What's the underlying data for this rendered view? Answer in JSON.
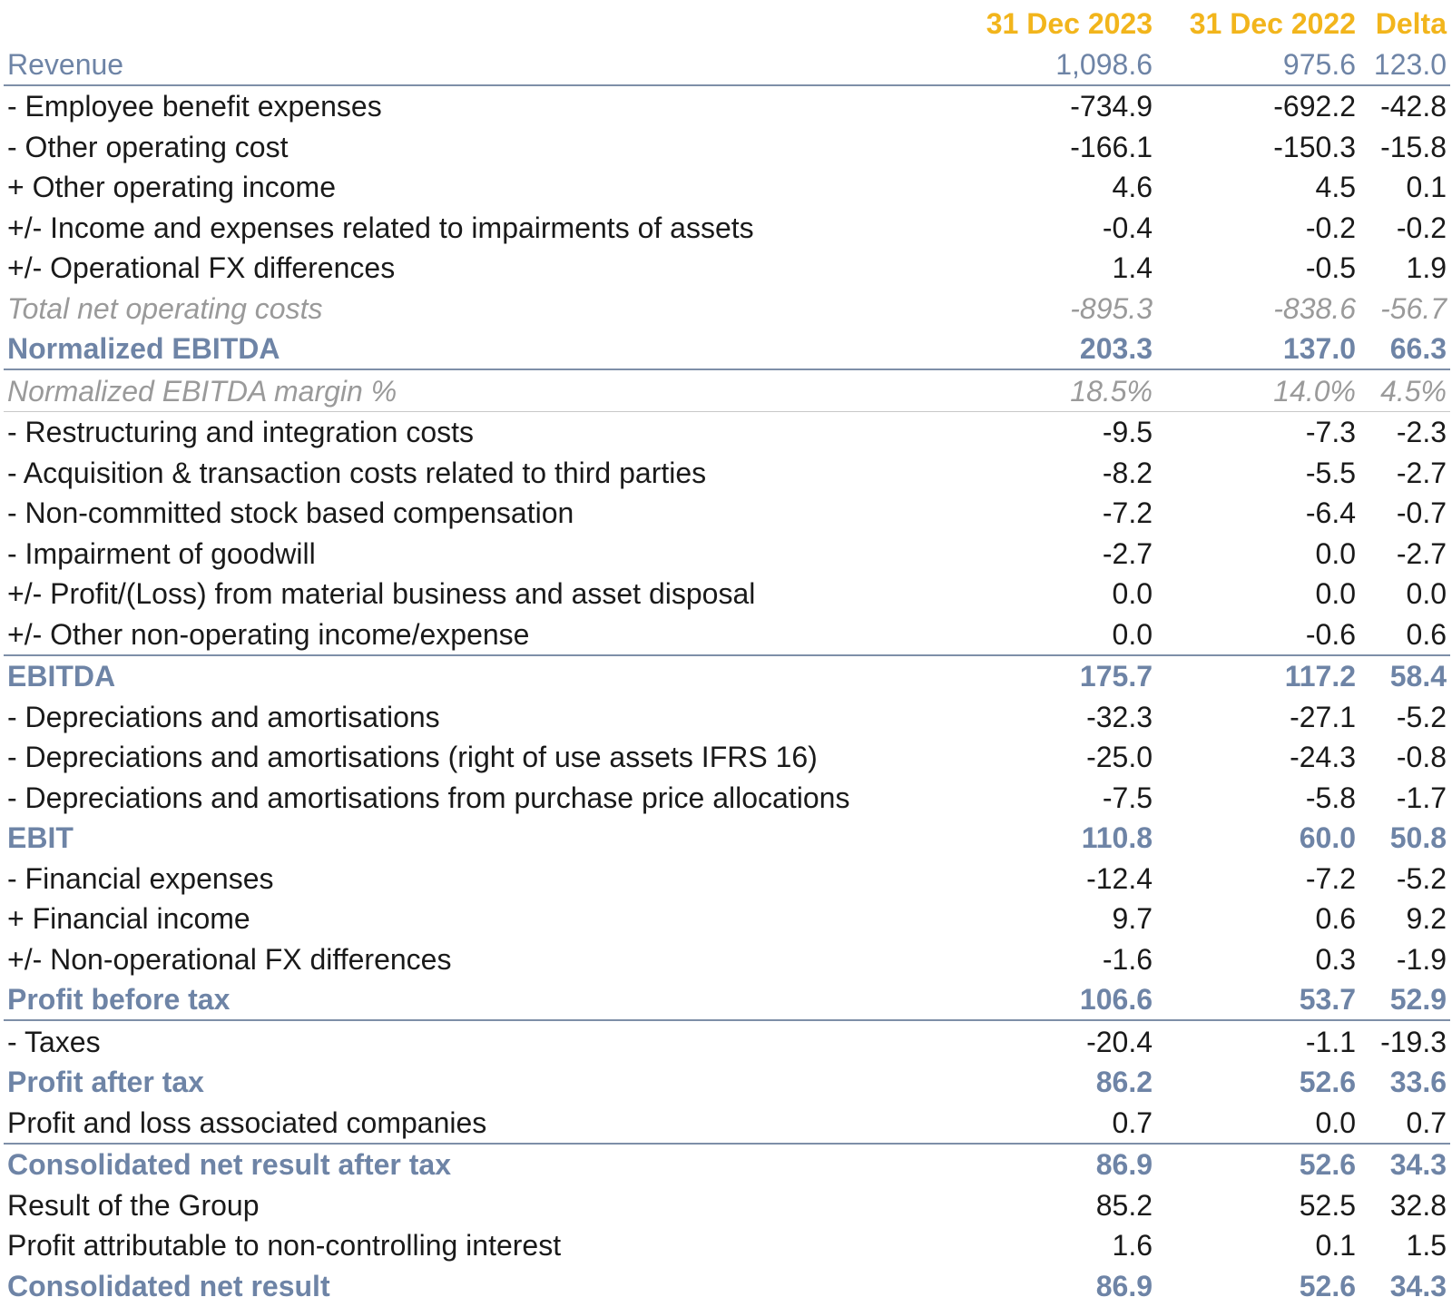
{
  "columns": {
    "label": "",
    "c2023": "31 Dec 2023",
    "c2022": "31 Dec 2022",
    "delta": "Delta"
  },
  "rows": [
    {
      "label": "Revenue",
      "c2023": "1,098.6",
      "c2022": "975.6",
      "delta": "123.0"
    },
    {
      "label": "- Employee benefit expenses",
      "c2023": "-734.9",
      "c2022": "-692.2",
      "delta": "-42.8"
    },
    {
      "label": "- Other operating cost",
      "c2023": "-166.1",
      "c2022": "-150.3",
      "delta": "-15.8"
    },
    {
      "label": "+ Other operating income",
      "c2023": "4.6",
      "c2022": "4.5",
      "delta": "0.1"
    },
    {
      "label": "+/- Income and expenses related to impairments of assets",
      "c2023": "-0.4",
      "c2022": "-0.2",
      "delta": "-0.2"
    },
    {
      "label": "+/- Operational FX differences",
      "c2023": "1.4",
      "c2022": "-0.5",
      "delta": "1.9"
    },
    {
      "label": "Total net operating costs",
      "c2023": "-895.3",
      "c2022": "-838.6",
      "delta": "-56.7"
    },
    {
      "label": "Normalized EBITDA",
      "c2023": "203.3",
      "c2022": "137.0",
      "delta": "66.3"
    },
    {
      "label": "Normalized EBITDA margin %",
      "c2023": "18.5%",
      "c2022": "14.0%",
      "delta": "4.5%"
    },
    {
      "label": "- Restructuring and integration costs",
      "c2023": "-9.5",
      "c2022": "-7.3",
      "delta": "-2.3"
    },
    {
      "label": "- Acquisition & transaction costs related to third parties",
      "c2023": "-8.2",
      "c2022": "-5.5",
      "delta": "-2.7"
    },
    {
      "label": "- Non-committed stock based compensation",
      "c2023": "-7.2",
      "c2022": "-6.4",
      "delta": "-0.7"
    },
    {
      "label": "- Impairment of goodwill",
      "c2023": "-2.7",
      "c2022": "0.0",
      "delta": "-2.7"
    },
    {
      "label": "+/- Profit/(Loss) from material business and asset disposal",
      "c2023": "0.0",
      "c2022": "0.0",
      "delta": "0.0"
    },
    {
      "label": "+/- Other non-operating income/expense",
      "c2023": "0.0",
      "c2022": "-0.6",
      "delta": "0.6"
    },
    {
      "label": "EBITDA",
      "c2023": "175.7",
      "c2022": "117.2",
      "delta": "58.4"
    },
    {
      "label": "- Depreciations and amortisations",
      "c2023": "-32.3",
      "c2022": "-27.1",
      "delta": "-5.2"
    },
    {
      "label": "- Depreciations and amortisations (right of use assets IFRS 16)",
      "c2023": "-25.0",
      "c2022": "-24.3",
      "delta": "-0.8"
    },
    {
      "label": "- Depreciations and amortisations from purchase price allocations",
      "c2023": "-7.5",
      "c2022": "-5.8",
      "delta": "-1.7"
    },
    {
      "label": "EBIT",
      "c2023": "110.8",
      "c2022": "60.0",
      "delta": "50.8"
    },
    {
      "label": "- Financial expenses",
      "c2023": "-12.4",
      "c2022": "-7.2",
      "delta": "-5.2"
    },
    {
      "label": "+ Financial income",
      "c2023": "9.7",
      "c2022": "0.6",
      "delta": "9.2"
    },
    {
      "label": "+/- Non-operational FX differences",
      "c2023": "-1.6",
      "c2022": "0.3",
      "delta": "-1.9"
    },
    {
      "label": "Profit before tax",
      "c2023": "106.6",
      "c2022": "53.7",
      "delta": "52.9"
    },
    {
      "label": "- Taxes",
      "c2023": "-20.4",
      "c2022": "-1.1",
      "delta": "-19.3"
    },
    {
      "label": "Profit after tax",
      "c2023": "86.2",
      "c2022": "52.6",
      "delta": "33.6"
    },
    {
      "label": "Profit and loss associated companies",
      "c2023": "0.7",
      "c2022": "0.0",
      "delta": "0.7"
    },
    {
      "label": "Consolidated net result after tax",
      "c2023": "86.9",
      "c2022": "52.6",
      "delta": "34.3"
    },
    {
      "label": "Result of the Group",
      "c2023": "85.2",
      "c2022": "52.5",
      "delta": "32.8"
    },
    {
      "label": "Profit attributable to non-controlling interest",
      "c2023": "1.6",
      "c2022": "0.1",
      "delta": "1.5"
    },
    {
      "label": "Consolidated net result",
      "c2023": "86.9",
      "c2022": "52.6",
      "delta": "34.3"
    }
  ],
  "colors": {
    "header": "#f2b51c",
    "key_line": "#6e84a6",
    "subtotal_italic": "#9a9a9a",
    "body_text": "#1a1a1a"
  }
}
